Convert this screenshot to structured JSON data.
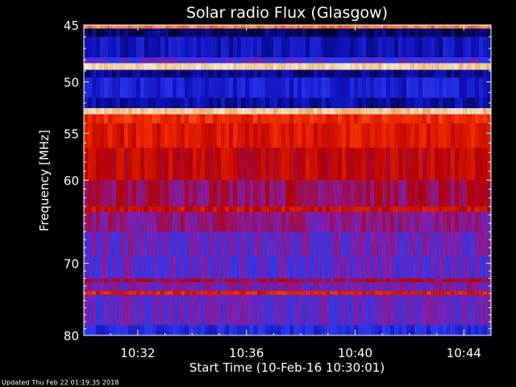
{
  "chart_data": {
    "type": "heatmap",
    "title": "Solar radio Flux (Glasgow)",
    "xlabel": "Start Time (10-Feb-16 10:30:01)",
    "ylabel": "Frequency [MHz]",
    "x_ticks": [
      "10:32",
      "10:36",
      "10:40",
      "10:44"
    ],
    "y_ticks": [
      45,
      50,
      55,
      60,
      70,
      80
    ],
    "x_range": [
      "10:30:01",
      "10:45:00"
    ],
    "y_range": [
      45,
      80
    ],
    "colormap": [
      "#000030",
      "#1010c0",
      "#2a3cff",
      "#8a1fb0",
      "#c00000",
      "#ff2a00",
      "#ff8040",
      "#ffd8a0",
      "#ffffff"
    ],
    "frequency_bands": [
      {
        "from": 45.0,
        "to": 45.3,
        "level": 0.75
      },
      {
        "from": 45.3,
        "to": 46.0,
        "level": 0.05
      },
      {
        "from": 46.0,
        "to": 47.8,
        "level": 0.14
      },
      {
        "from": 47.8,
        "to": 48.3,
        "level": 0.3
      },
      {
        "from": 48.3,
        "to": 48.9,
        "level": 0.9
      },
      {
        "from": 48.9,
        "to": 49.6,
        "level": 0.08
      },
      {
        "from": 49.6,
        "to": 51.5,
        "level": 0.18
      },
      {
        "from": 51.5,
        "to": 52.5,
        "level": 0.12
      },
      {
        "from": 52.5,
        "to": 53.1,
        "level": 0.88
      },
      {
        "from": 53.1,
        "to": 54.0,
        "level": 0.62
      },
      {
        "from": 54.0,
        "to": 56.5,
        "level": 0.58
      },
      {
        "from": 56.5,
        "to": 60.0,
        "level": 0.52
      },
      {
        "from": 60.0,
        "to": 63.0,
        "level": 0.44
      },
      {
        "from": 63.0,
        "to": 63.6,
        "level": 0.55
      },
      {
        "from": 63.6,
        "to": 66.0,
        "level": 0.4
      },
      {
        "from": 66.0,
        "to": 69.0,
        "level": 0.34
      },
      {
        "from": 69.0,
        "to": 72.0,
        "level": 0.32
      },
      {
        "from": 72.0,
        "to": 72.5,
        "level": 0.46
      },
      {
        "from": 72.5,
        "to": 73.7,
        "level": 0.36
      },
      {
        "from": 73.7,
        "to": 74.2,
        "level": 0.6
      },
      {
        "from": 74.2,
        "to": 78.5,
        "level": 0.33
      },
      {
        "from": 78.5,
        "to": 80.0,
        "level": 0.22
      }
    ]
  },
  "footer": {
    "updated": "Updated Thu Feb 22 01:19:35 2018"
  }
}
